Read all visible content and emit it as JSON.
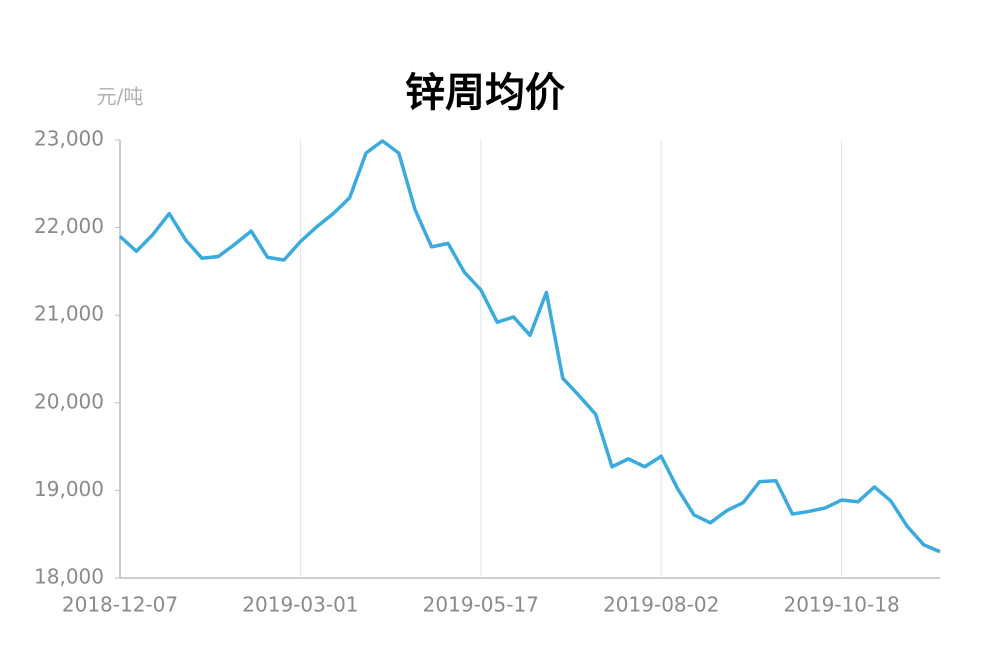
{
  "chart_data": {
    "type": "line",
    "title": "锌周均价",
    "y_unit": "元/吨",
    "categories": [
      "2018-12-07",
      null,
      null,
      null,
      null,
      null,
      null,
      null,
      null,
      null,
      null,
      "2019-03-01",
      null,
      null,
      null,
      null,
      null,
      null,
      null,
      null,
      null,
      null,
      "2019-05-17",
      null,
      null,
      null,
      null,
      null,
      null,
      null,
      null,
      null,
      null,
      "2019-08-02",
      null,
      null,
      null,
      null,
      null,
      null,
      null,
      null,
      null,
      null,
      "2019-10-18",
      null,
      null,
      null,
      null,
      null,
      null
    ],
    "series": [
      {
        "name": "锌周均价",
        "color": "#3aabdc",
        "values": [
          21900,
          21730,
          21920,
          22160,
          21860,
          21650,
          21670,
          21810,
          21960,
          21660,
          21630,
          21840,
          22010,
          22160,
          22340,
          22850,
          22990,
          22850,
          22200,
          21780,
          21820,
          21490,
          21290,
          20920,
          20980,
          20770,
          21260,
          20280,
          20080,
          19870,
          19270,
          19360,
          19270,
          19390,
          19020,
          18720,
          18630,
          18770,
          18860,
          19100,
          19110,
          18730,
          18760,
          18800,
          18890,
          18870,
          19040,
          18880,
          18590,
          18380,
          18300
        ]
      }
    ],
    "ylim": [
      18000,
      23000
    ],
    "yticks": [
      {
        "value": 18000,
        "label": "18,000"
      },
      {
        "value": 19000,
        "label": "19,000"
      },
      {
        "value": 20000,
        "label": "20,000"
      },
      {
        "value": 21000,
        "label": "21,000"
      },
      {
        "value": 22000,
        "label": "22,000"
      },
      {
        "value": 23000,
        "label": "23,000"
      }
    ],
    "grid": true
  }
}
